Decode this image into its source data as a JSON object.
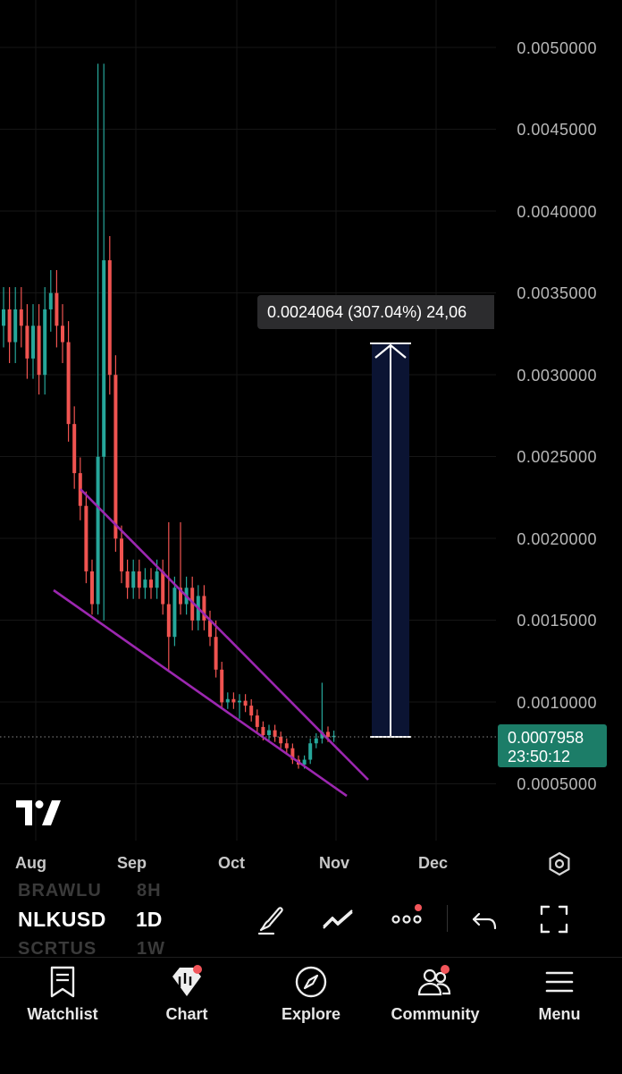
{
  "chart": {
    "symbol": "NLKUSD",
    "interval": "1D",
    "price_axis": [
      "0.0050000",
      "0.0045000",
      "0.0040000",
      "0.0035000",
      "0.0030000",
      "0.0025000",
      "0.0020000",
      "0.0015000",
      "0.0010000",
      "0.0005000"
    ],
    "date_axis": [
      "Aug",
      "Sep",
      "Oct",
      "Nov",
      "Dec"
    ],
    "current_price": "0.0007958",
    "countdown": "23:50:12",
    "measure_tooltip": "0.0024064 (307.04%) 24,06",
    "colors": {
      "up": "#26a69a",
      "down": "#ef5350",
      "trendline": "#9c27b0",
      "measure_fill": "#0b1433",
      "price_box": "#1c7d68"
    },
    "ghost_symbols": [
      "BRAWLU",
      "SCRTUS"
    ],
    "ghost_intervals": [
      "8H",
      "1W"
    ]
  },
  "toolbar": {
    "icons": [
      "draw-brush-icon",
      "indicators-icon",
      "more-icon",
      "undo-icon",
      "fullscreen-icon"
    ]
  },
  "nav": {
    "items": [
      {
        "label": "Watchlist",
        "icon": "watchlist-icon"
      },
      {
        "label": "Chart",
        "icon": "chart-icon"
      },
      {
        "label": "Explore",
        "icon": "explore-icon"
      },
      {
        "label": "Community",
        "icon": "community-icon"
      },
      {
        "label": "Menu",
        "icon": "menu-icon"
      }
    ]
  }
}
